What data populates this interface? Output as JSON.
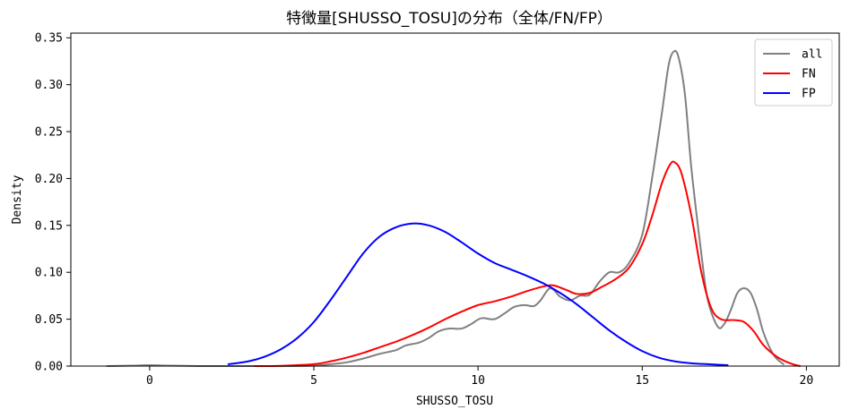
{
  "chart_data": {
    "type": "line",
    "title": "特徴量[SHUSSO_TOSU]の分布（全体/FN/FP）",
    "xlabel": "SHUSSO_TOSU",
    "ylabel": "Density",
    "xlim": [
      -2.4,
      21.0
    ],
    "ylim": [
      0,
      0.355
    ],
    "xticks": [
      0,
      5,
      10,
      15,
      20
    ],
    "yticks": [
      0.0,
      0.05,
      0.1,
      0.15,
      0.2,
      0.25,
      0.3,
      0.35
    ],
    "ytick_labels": [
      "0.00",
      "0.05",
      "0.10",
      "0.15",
      "0.20",
      "0.25",
      "0.30",
      "0.35"
    ],
    "legend_position": "top-right",
    "grid": false,
    "series": [
      {
        "name": "all",
        "color": "#808080",
        "points": [
          [
            -1.3,
            0.0
          ],
          [
            -0.5,
            0.0005
          ],
          [
            0,
            0.001
          ],
          [
            0.5,
            0.0005
          ],
          [
            1.5,
            0.0
          ],
          [
            3,
            0.0
          ],
          [
            4,
            0.0
          ],
          [
            5,
            0.0005
          ],
          [
            5.5,
            0.002
          ],
          [
            6,
            0.004
          ],
          [
            6.5,
            0.008
          ],
          [
            7,
            0.013
          ],
          [
            7.5,
            0.017
          ],
          [
            7.8,
            0.022
          ],
          [
            8.2,
            0.025
          ],
          [
            8.5,
            0.03
          ],
          [
            8.8,
            0.037
          ],
          [
            9.1,
            0.04
          ],
          [
            9.5,
            0.04
          ],
          [
            9.8,
            0.045
          ],
          [
            10.1,
            0.051
          ],
          [
            10.5,
            0.05
          ],
          [
            10.8,
            0.056
          ],
          [
            11.1,
            0.063
          ],
          [
            11.4,
            0.065
          ],
          [
            11.7,
            0.064
          ],
          [
            11.9,
            0.07
          ],
          [
            12.2,
            0.083
          ],
          [
            12.5,
            0.074
          ],
          [
            12.8,
            0.07
          ],
          [
            13.1,
            0.075
          ],
          [
            13.4,
            0.076
          ],
          [
            13.7,
            0.09
          ],
          [
            14.0,
            0.1
          ],
          [
            14.3,
            0.1
          ],
          [
            14.6,
            0.11
          ],
          [
            15.0,
            0.14
          ],
          [
            15.3,
            0.2
          ],
          [
            15.6,
            0.27
          ],
          [
            15.8,
            0.32
          ],
          [
            15.95,
            0.335
          ],
          [
            16.1,
            0.33
          ],
          [
            16.3,
            0.29
          ],
          [
            16.5,
            0.21
          ],
          [
            16.8,
            0.12
          ],
          [
            17.0,
            0.07
          ],
          [
            17.3,
            0.042
          ],
          [
            17.5,
            0.045
          ],
          [
            17.7,
            0.06
          ],
          [
            17.9,
            0.078
          ],
          [
            18.1,
            0.083
          ],
          [
            18.3,
            0.078
          ],
          [
            18.5,
            0.06
          ],
          [
            18.7,
            0.035
          ],
          [
            19.0,
            0.012
          ],
          [
            19.3,
            0.002
          ]
        ]
      },
      {
        "name": "FN",
        "color": "#ff0000",
        "points": [
          [
            3.2,
            0.0
          ],
          [
            4,
            0.0003
          ],
          [
            5,
            0.002
          ],
          [
            5.5,
            0.005
          ],
          [
            6,
            0.009
          ],
          [
            6.5,
            0.014
          ],
          [
            7,
            0.02
          ],
          [
            7.5,
            0.026
          ],
          [
            8,
            0.033
          ],
          [
            8.5,
            0.041
          ],
          [
            9,
            0.05
          ],
          [
            9.5,
            0.058
          ],
          [
            10,
            0.065
          ],
          [
            10.5,
            0.069
          ],
          [
            11,
            0.074
          ],
          [
            11.5,
            0.08
          ],
          [
            12,
            0.085
          ],
          [
            12.3,
            0.086
          ],
          [
            12.7,
            0.081
          ],
          [
            13,
            0.077
          ],
          [
            13.4,
            0.078
          ],
          [
            13.8,
            0.085
          ],
          [
            14.2,
            0.093
          ],
          [
            14.6,
            0.105
          ],
          [
            15.0,
            0.13
          ],
          [
            15.3,
            0.16
          ],
          [
            15.6,
            0.195
          ],
          [
            15.85,
            0.215
          ],
          [
            16.0,
            0.217
          ],
          [
            16.2,
            0.205
          ],
          [
            16.5,
            0.16
          ],
          [
            16.8,
            0.1
          ],
          [
            17.1,
            0.062
          ],
          [
            17.4,
            0.05
          ],
          [
            17.8,
            0.049
          ],
          [
            18.1,
            0.047
          ],
          [
            18.4,
            0.037
          ],
          [
            18.7,
            0.022
          ],
          [
            19.1,
            0.01
          ],
          [
            19.5,
            0.003
          ],
          [
            19.8,
            0.0
          ]
        ]
      },
      {
        "name": "FP",
        "color": "#0000ff",
        "points": [
          [
            2.4,
            0.002
          ],
          [
            3,
            0.005
          ],
          [
            3.5,
            0.01
          ],
          [
            4,
            0.018
          ],
          [
            4.5,
            0.03
          ],
          [
            5,
            0.047
          ],
          [
            5.5,
            0.07
          ],
          [
            6,
            0.095
          ],
          [
            6.5,
            0.12
          ],
          [
            7,
            0.138
          ],
          [
            7.5,
            0.148
          ],
          [
            8,
            0.152
          ],
          [
            8.5,
            0.15
          ],
          [
            9,
            0.143
          ],
          [
            9.5,
            0.132
          ],
          [
            10,
            0.12
          ],
          [
            10.5,
            0.11
          ],
          [
            11,
            0.103
          ],
          [
            11.5,
            0.096
          ],
          [
            12,
            0.088
          ],
          [
            12.5,
            0.078
          ],
          [
            13,
            0.066
          ],
          [
            13.5,
            0.052
          ],
          [
            14,
            0.038
          ],
          [
            14.5,
            0.026
          ],
          [
            15,
            0.016
          ],
          [
            15.5,
            0.009
          ],
          [
            16,
            0.005
          ],
          [
            16.5,
            0.003
          ],
          [
            17,
            0.002
          ],
          [
            17.6,
            0.001
          ]
        ]
      }
    ]
  }
}
